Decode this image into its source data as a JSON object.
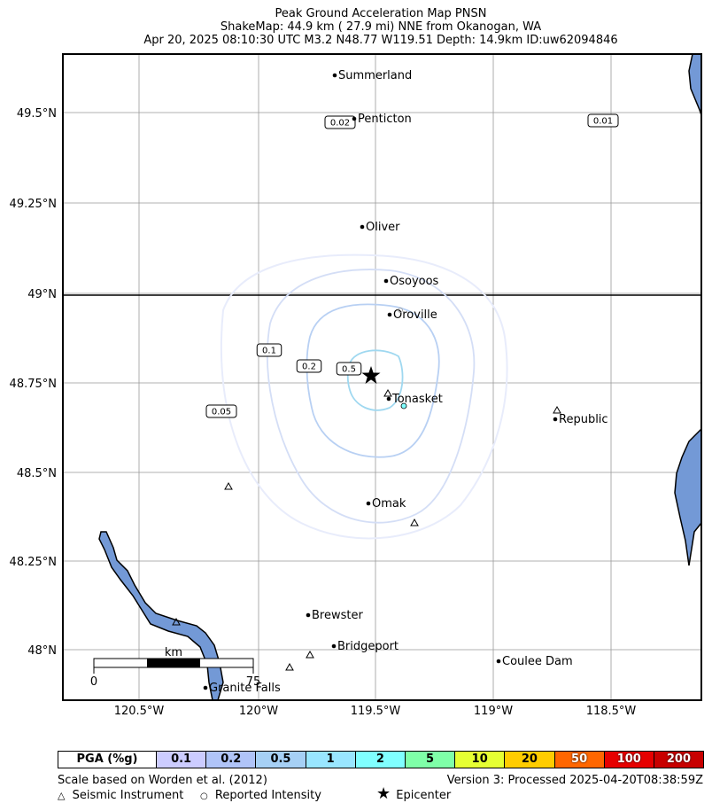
{
  "header": {
    "line1": "Peak Ground Acceleration Map PNSN",
    "line2": "ShakeMap: 44.9 km (  27.9 mi) NNE from Okanogan, WA",
    "line3": "Apr 20, 2025 08:10:30 UTC M3.2 N48.77 W119.51 Depth: 14.9km ID:uw62094846"
  },
  "axes": {
    "lat_ticks": [
      "49.5°N",
      "49.25°N",
      "49°N",
      "48.75°N",
      "48.5°N",
      "48.25°N",
      "48°N"
    ],
    "lon_ticks": [
      "120.5°W",
      "120°W",
      "119.5°W",
      "119°W",
      "118.5°W"
    ]
  },
  "cities": [
    {
      "name": "Summerland"
    },
    {
      "name": "Penticton"
    },
    {
      "name": "Oliver"
    },
    {
      "name": "Osoyoos"
    },
    {
      "name": "Oroville"
    },
    {
      "name": "Tonasket"
    },
    {
      "name": "Republic"
    },
    {
      "name": "Omak"
    },
    {
      "name": "Brewster"
    },
    {
      "name": "Bridgeport"
    },
    {
      "name": "Coulee Dam"
    },
    {
      "name": "Granite Falls"
    }
  ],
  "contour_labels": [
    "0.02",
    "0.01",
    "0.1",
    "0.2",
    "0.5",
    "0.05"
  ],
  "scalebar": {
    "unit": "km",
    "start": "0",
    "end": "75"
  },
  "legend": {
    "title": "PGA (%g)",
    "items": [
      {
        "label": "0.1",
        "color": "#ccccff"
      },
      {
        "label": "0.2",
        "color": "#b0c4f8"
      },
      {
        "label": "0.5",
        "color": "#a6d0f5"
      },
      {
        "label": "1",
        "color": "#99e6ff"
      },
      {
        "label": "2",
        "color": "#80ffff"
      },
      {
        "label": "5",
        "color": "#7fffa8"
      },
      {
        "label": "10",
        "color": "#e6ff33"
      },
      {
        "label": "20",
        "color": "#ffcc00"
      },
      {
        "label": "50",
        "color": "#ff6600"
      },
      {
        "label": "100",
        "color": "#e60000"
      },
      {
        "label": "200",
        "color": "#c80000"
      }
    ]
  },
  "footer": {
    "scale_note": "Scale based on Worden et al. (2012)",
    "version": "Version 3: Processed 2025-04-20T08:38:59Z",
    "key_instrument": "Seismic Instrument",
    "key_intensity": "Reported Intensity",
    "key_epicenter": "Epicenter"
  }
}
